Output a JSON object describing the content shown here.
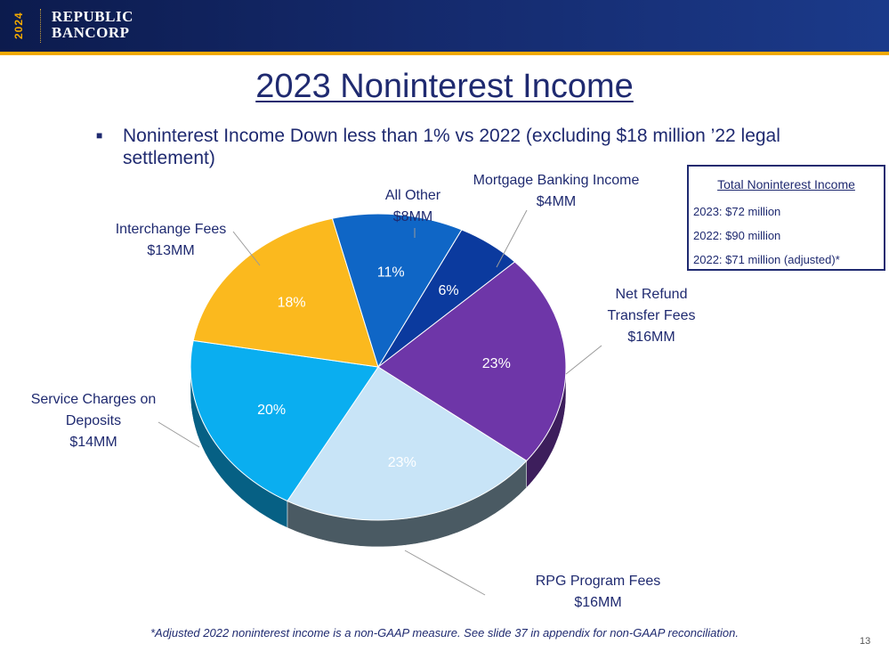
{
  "header": {
    "year": "2024",
    "logo_line1": "REPUBLIC",
    "logo_line2": "BANCORP"
  },
  "title": "2023 Noninterest Income",
  "bullet": "Noninterest Income Down less than 1% vs 2022 (excluding $18 million ’22 legal settlement)",
  "totals_box": {
    "title": "Total Noninterest Income",
    "lines": [
      "2023: $72 million",
      "2022: $90 million",
      "2022: $71 million (adjusted)*"
    ]
  },
  "chart_data": {
    "type": "pie",
    "title": "",
    "slices": [
      {
        "name": "Mortgage Banking Income",
        "amount": "$4MM",
        "value": 4,
        "pct_label": "6%",
        "color": "#0b3a9e"
      },
      {
        "name": "Net Refund Transfer Fees",
        "amount": "$16MM",
        "value": 16,
        "pct_label": "23%",
        "color": "#6e36a8"
      },
      {
        "name": "RPG Program Fees",
        "amount": "$16MM",
        "value": 16,
        "pct_label": "23%",
        "color": "#c8e4f7"
      },
      {
        "name": "Service Charges on Deposits",
        "amount": "$14MM",
        "value": 14,
        "pct_label": "20%",
        "color": "#0aaef0"
      },
      {
        "name": "Interchange Fees",
        "amount": "$13MM",
        "value": 13,
        "pct_label": "18%",
        "color": "#fbb91e"
      },
      {
        "name": "All Other",
        "amount": "$8MM",
        "value": 8,
        "pct_label": "11%",
        "color": "#0f66c6"
      }
    ]
  },
  "footnote": "*Adjusted 2022 noninterest income is a non-GAAP measure. See slide 37 in appendix for non-GAAP reconciliation.",
  "page_number": "13"
}
